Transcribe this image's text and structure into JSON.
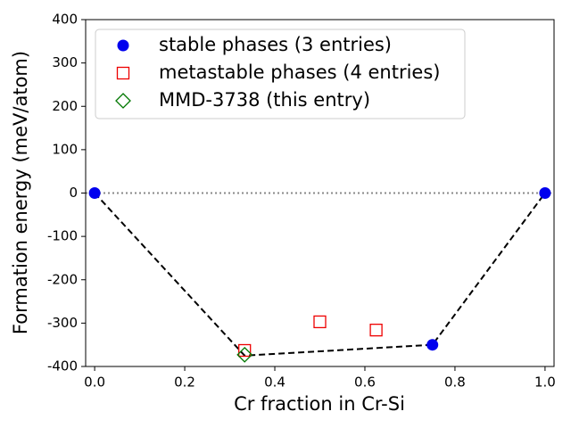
{
  "chart_data": {
    "type": "scatter",
    "x_label": "Cr fraction in Cr-Si",
    "y_label": "Formation energy (meV/atom)",
    "xlim": [
      -0.02,
      1.02
    ],
    "ylim": [
      -400,
      400
    ],
    "xticks": [
      {
        "value": 0,
        "label": "0.0"
      },
      0.2,
      0.4,
      0.6,
      0.8,
      {
        "value": 1,
        "label": "1.0"
      }
    ],
    "yticks": [
      -400,
      -300,
      -200,
      -100,
      0,
      100,
      200,
      300,
      400
    ],
    "reference_line": 0,
    "legend": "upper left",
    "hull": {
      "x": [
        0,
        0.333,
        0.75,
        1
      ],
      "values": [
        0,
        -375,
        -350,
        0
      ],
      "color": "#000000"
    },
    "series": [
      {
        "name": "stable phases (3 entries)",
        "marker": "circle",
        "color": "#0000ee",
        "x": [
          0,
          0.75,
          1
        ],
        "values": [
          0,
          -350,
          0
        ]
      },
      {
        "name": "metastable phases (4 entries)",
        "marker": "square",
        "color": "#ee0000",
        "x": [
          0.333,
          0.5,
          0.625
        ],
        "values": [
          -363,
          -297,
          -316
        ]
      },
      {
        "name": "MMD-3738 (this entry)",
        "marker": "diamond",
        "color": "#007700",
        "x": [
          0.333
        ],
        "values": [
          -373
        ]
      }
    ]
  }
}
